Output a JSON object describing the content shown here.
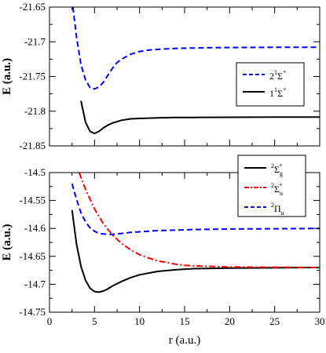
{
  "chart_data": [
    {
      "type": "line",
      "panel": "top",
      "xlabel": "",
      "ylabel": "E (a.u.)",
      "xlim": [
        0,
        30
      ],
      "ylim": [
        -21.85,
        -21.65
      ],
      "x_ticks": [
        0,
        5,
        10,
        15,
        20,
        25,
        30
      ],
      "y_ticks": [
        "-21.65",
        "-21.7",
        "-21.75",
        "-21.8",
        "-21.85"
      ],
      "y_tick_values": [
        -21.65,
        -21.7,
        -21.75,
        -21.8,
        -21.85
      ],
      "grid": false,
      "legend": "right",
      "series": [
        {
          "name": "2¹Σ⁺",
          "legend_label": {
            "lead": "2",
            "sup1": "1",
            "sym": "Σ",
            "sup2": "+",
            "sub": ""
          },
          "color": "#0000ff",
          "style": "dashed",
          "x": [
            2.6,
            3.0,
            3.5,
            4.0,
            4.5,
            5.0,
            5.5,
            6.0,
            6.5,
            7.0,
            7.5,
            8.0,
            9.0,
            10.0,
            11.0,
            12.0,
            14.0,
            16.0,
            18.0,
            20.0,
            25.0,
            30.0
          ],
          "y": [
            -21.65,
            -21.693,
            -21.733,
            -21.755,
            -21.766,
            -21.768,
            -21.765,
            -21.758,
            -21.748,
            -21.738,
            -21.73,
            -21.725,
            -21.718,
            -21.714,
            -21.712,
            -21.711,
            -21.7095,
            -21.709,
            -21.7085,
            -21.7083,
            -21.708,
            -21.708
          ]
        },
        {
          "name": "1¹Σ⁺",
          "legend_label": {
            "lead": "1",
            "sup1": "1",
            "sym": "Σ",
            "sup2": "+",
            "sub": ""
          },
          "color": "#000000",
          "style": "solid",
          "x": [
            3.5,
            4.0,
            4.5,
            5.0,
            5.5,
            6.0,
            6.5,
            7.0,
            8.0,
            9.0,
            10.0,
            12.0,
            14.0,
            16.0,
            20.0,
            25.0,
            30.0
          ],
          "y": [
            -21.785,
            -21.816,
            -21.829,
            -21.832,
            -21.829,
            -21.824,
            -21.82,
            -21.817,
            -21.813,
            -21.811,
            -21.8105,
            -21.8095,
            -21.809,
            -21.809,
            -21.8088,
            -21.8085,
            -21.8085
          ]
        }
      ]
    },
    {
      "type": "line",
      "panel": "bottom",
      "xlabel": "r (a.u.)",
      "ylabel": "E (a.u.)",
      "xlim": [
        0,
        30
      ],
      "ylim": [
        -14.75,
        -14.5
      ],
      "x_ticks": [
        "0",
        "5",
        "10",
        "15",
        "20",
        "25",
        "30"
      ],
      "x_tick_values": [
        0,
        5,
        10,
        15,
        20,
        25,
        30
      ],
      "y_ticks": [
        "-14.5",
        "-14.55",
        "-14.6",
        "-14.65",
        "-14.7",
        "-14.75"
      ],
      "y_tick_values": [
        -14.5,
        -14.55,
        -14.6,
        -14.65,
        -14.7,
        -14.75
      ],
      "grid": false,
      "legend": "top-right",
      "series": [
        {
          "name": "²Σg⁺",
          "legend_label": {
            "lead": "",
            "sup1": "2",
            "sym": "Σ",
            "sup2": "+",
            "sub": "g"
          },
          "color": "#000000",
          "style": "solid",
          "x": [
            2.5,
            3.0,
            3.5,
            4.0,
            4.5,
            5.0,
            5.5,
            6.0,
            6.5,
            7.0,
            8.0,
            9.0,
            10.0,
            12.0,
            14.0,
            16.0,
            18.0,
            20.0,
            25.0,
            30.0
          ],
          "y": [
            -14.567,
            -14.628,
            -14.668,
            -14.693,
            -14.707,
            -14.713,
            -14.714,
            -14.712,
            -14.708,
            -14.703,
            -14.695,
            -14.688,
            -14.683,
            -14.677,
            -14.674,
            -14.672,
            -14.6715,
            -14.671,
            -14.6705,
            -14.67
          ]
        },
        {
          "name": "²Σu⁺",
          "legend_label": {
            "lead": "",
            "sup1": "2",
            "sym": "Σ",
            "sup2": "+",
            "sub": "u"
          },
          "color": "#ff0000",
          "style": "dashdot",
          "x": [
            3.3,
            4.0,
            5.0,
            6.0,
            7.0,
            8.0,
            9.0,
            10.0,
            11.0,
            12.0,
            13.0,
            14.0,
            15.0,
            16.0,
            18.0,
            20.0,
            25.0,
            30.0
          ],
          "y": [
            -14.5,
            -14.53,
            -14.565,
            -14.592,
            -14.612,
            -14.627,
            -14.638,
            -14.647,
            -14.653,
            -14.658,
            -14.661,
            -14.664,
            -14.666,
            -14.667,
            -14.668,
            -14.669,
            -14.6695,
            -14.67
          ]
        },
        {
          "name": "²Πu",
          "legend_label": {
            "lead": "",
            "sup1": "2",
            "sym": "Π",
            "sup2": "",
            "sub": "u"
          },
          "color": "#0000ff",
          "style": "dashed",
          "x": [
            2.5,
            3.0,
            3.5,
            4.0,
            4.5,
            5.0,
            5.5,
            6.0,
            6.5,
            7.0,
            8.0,
            9.0,
            10.0,
            12.0,
            14.0,
            16.0,
            18.0,
            20.0,
            25.0,
            30.0
          ],
          "y": [
            -14.52,
            -14.548,
            -14.572,
            -14.588,
            -14.599,
            -14.605,
            -14.609,
            -14.61,
            -14.6105,
            -14.6105,
            -14.609,
            -14.607,
            -14.606,
            -14.604,
            -14.603,
            -14.602,
            -14.6015,
            -14.601,
            -14.6005,
            -14.6
          ]
        }
      ]
    }
  ]
}
